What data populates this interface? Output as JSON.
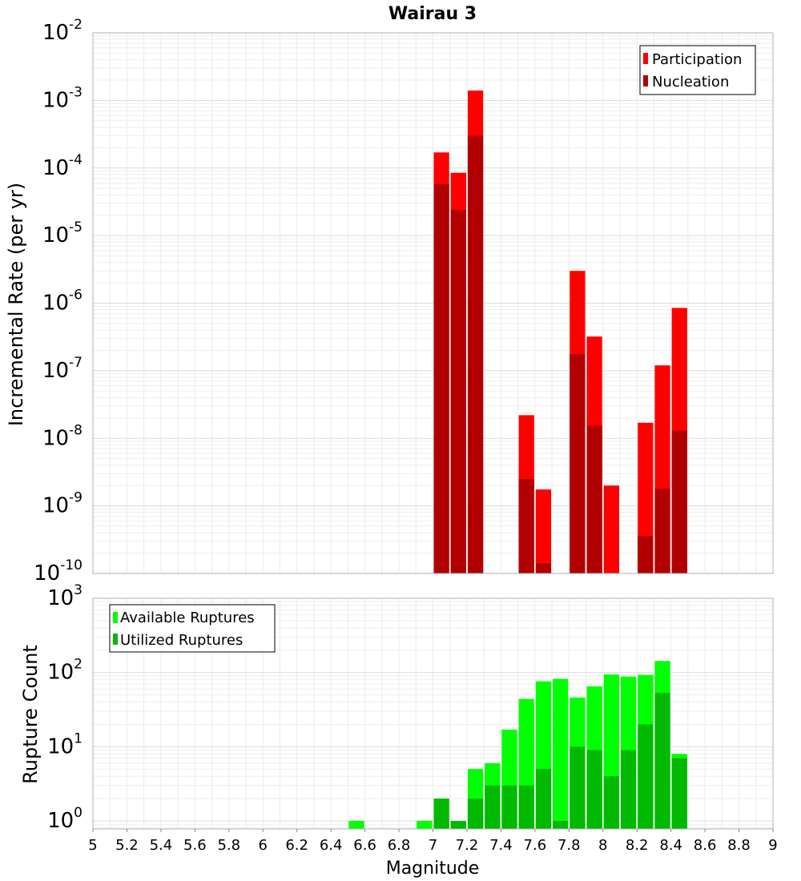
{
  "chart_data": [
    {
      "type": "bar",
      "title": "Wairau 3",
      "ylabel": "Incremental Rate (per yr)",
      "y_scale": "log",
      "ylim": [
        1e-10,
        0.01
      ],
      "xlim": [
        5,
        9
      ],
      "bar_width": 0.1,
      "x": [
        7.05,
        7.15,
        7.25,
        7.55,
        7.65,
        7.85,
        7.95,
        8.05,
        8.25,
        8.35,
        8.45
      ],
      "series": [
        {
          "name": "Participation",
          "color": "#ff0000",
          "values": [
            0.00017,
            8.5e-05,
            0.0014,
            2.2e-08,
            1.75e-09,
            3e-06,
            3.2e-07,
            2e-09,
            1.7e-08,
            1.2e-07,
            8.5e-07
          ]
        },
        {
          "name": "Nucleation",
          "color": "#b20000",
          "values": [
            5.8e-05,
            2.4e-05,
            0.0003,
            2.5e-09,
            1.4e-10,
            1.75e-07,
            1.55e-08,
            0,
            3.6e-10,
            1.8e-09,
            1.3e-08
          ]
        }
      ],
      "legend_position": "top-right",
      "grid": true,
      "y_tick_labels": [
        {
          "base": "10",
          "exp": "-2"
        },
        {
          "base": "10",
          "exp": "-3"
        },
        {
          "base": "10",
          "exp": "-4"
        },
        {
          "base": "10",
          "exp": "-5"
        },
        {
          "base": "10",
          "exp": "-6"
        },
        {
          "base": "10",
          "exp": "-7"
        },
        {
          "base": "10",
          "exp": "-8"
        },
        {
          "base": "10",
          "exp": "-9"
        },
        {
          "base": "10",
          "exp": "-10"
        }
      ]
    },
    {
      "type": "bar",
      "ylabel": "Rupture Count",
      "xlabel": "Magnitude",
      "y_scale": "log",
      "ylim": [
        0.78,
        1000
      ],
      "xlim": [
        5,
        9
      ],
      "bar_width": 0.1,
      "x": [
        6.55,
        6.95,
        7.05,
        7.15,
        7.25,
        7.35,
        7.45,
        7.55,
        7.65,
        7.75,
        7.85,
        7.95,
        8.05,
        8.15,
        8.25,
        8.35,
        8.45
      ],
      "series": [
        {
          "name": "Available Ruptures",
          "color": "#00ff00",
          "values": [
            1,
            1,
            2,
            1,
            5,
            6,
            17,
            44,
            76,
            82,
            46,
            65,
            94,
            88,
            93,
            143,
            8
          ]
        },
        {
          "name": "Utilized Ruptures",
          "color": "#00b900",
          "values": [
            0,
            0,
            2,
            1,
            2,
            3,
            3,
            3,
            5,
            1,
            10,
            9,
            4,
            9,
            20,
            53,
            7
          ]
        }
      ],
      "legend_position": "top-left",
      "grid": true,
      "y_tick_labels": [
        {
          "base": "10",
          "exp": "3"
        },
        {
          "base": "10",
          "exp": "2"
        },
        {
          "base": "10",
          "exp": "1"
        },
        {
          "base": "10",
          "exp": "0"
        }
      ],
      "x_tick_labels": [
        "5",
        "5.2",
        "5.4",
        "5.6",
        "5.8",
        "6",
        "6.2",
        "6.4",
        "6.6",
        "6.8",
        "7",
        "7.2",
        "7.4",
        "7.6",
        "7.8",
        "8",
        "8.2",
        "8.4",
        "8.6",
        "8.8",
        "9"
      ]
    }
  ]
}
